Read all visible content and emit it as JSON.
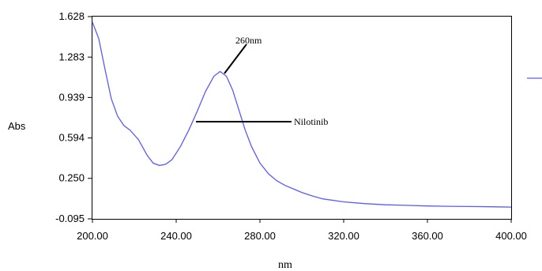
{
  "chart_data": {
    "type": "line",
    "xlabel": "nm",
    "ylabel": "Abs",
    "xlim": [
      200,
      400
    ],
    "ylim": [
      -0.095,
      1.628
    ],
    "x_ticks": [
      "200.00",
      "240.00",
      "280.00",
      "320.00",
      "360.00",
      "400.00"
    ],
    "y_ticks": [
      "1.628",
      "1.283",
      "0.939",
      "0.594",
      "0.250",
      "-0.095"
    ],
    "grid": false,
    "annotations": [
      {
        "text": "260nm",
        "x": 261,
        "y": 1.16
      },
      {
        "text": "Nilotinib",
        "x": 294,
        "y": 0.75
      }
    ],
    "series": [
      {
        "name": "",
        "color": "#5a5aff",
        "x": [
          200,
          203,
          206,
          209,
          212,
          215,
          218,
          222,
          226,
          229,
          232,
          235,
          238,
          242,
          246,
          250,
          254,
          258,
          261,
          264,
          267,
          270,
          273,
          276,
          280,
          284,
          288,
          292,
          296,
          300,
          305,
          310,
          320,
          330,
          340,
          350,
          360,
          370,
          380,
          390,
          400
        ],
        "y": [
          1.58,
          1.44,
          1.18,
          0.93,
          0.78,
          0.7,
          0.66,
          0.58,
          0.45,
          0.38,
          0.36,
          0.37,
          0.41,
          0.52,
          0.66,
          0.82,
          0.99,
          1.12,
          1.16,
          1.12,
          1.0,
          0.83,
          0.66,
          0.52,
          0.38,
          0.29,
          0.23,
          0.19,
          0.16,
          0.13,
          0.1,
          0.075,
          0.05,
          0.035,
          0.025,
          0.02,
          0.015,
          0.012,
          0.01,
          0.008,
          0.005
        ]
      }
    ]
  }
}
